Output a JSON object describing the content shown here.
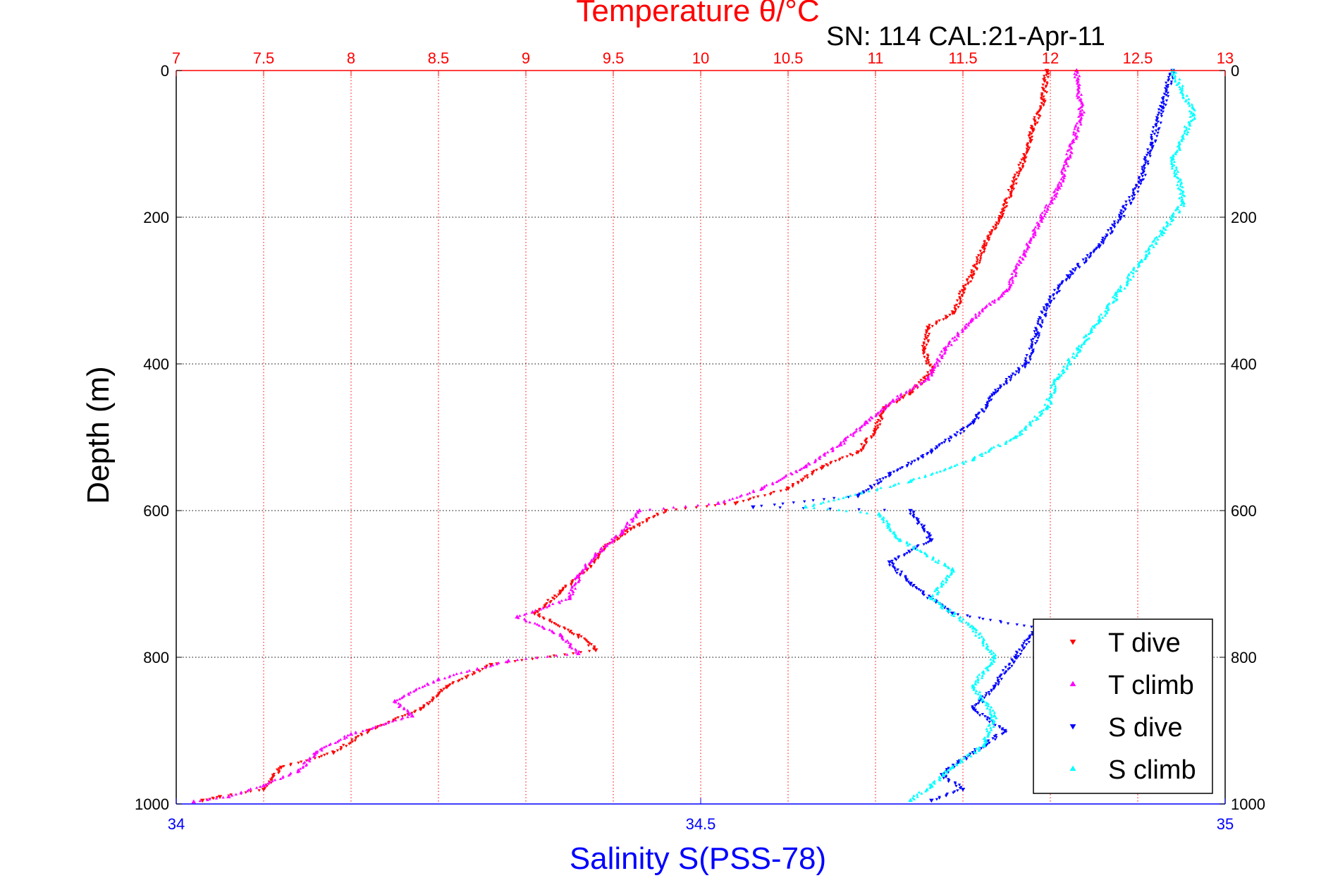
{
  "chart_data": {
    "type": "scatter",
    "title": "Temperature θ/°C",
    "subtitle": "SN: 114  CAL:21-Apr-11",
    "ylabel": "Depth (m)",
    "xlabel_top": "Temperature θ/°C",
    "xlabel_bottom": "Salinity S(PSS-78)",
    "ylim": [
      0,
      1000
    ],
    "y_reversed": true,
    "temperature_axis": {
      "range": [
        7,
        13
      ],
      "ticks": [
        "7",
        "7.5",
        "8",
        "8.5",
        "9",
        "9.5",
        "10",
        "10.5",
        "11",
        "11.5",
        "12",
        "12.5",
        "13"
      ]
    },
    "salinity_axis": {
      "range": [
        34,
        35
      ],
      "ticks": [
        "34",
        "34.5",
        "35"
      ]
    },
    "depth_ticks": [
      "0",
      "200",
      "400",
      "600",
      "800",
      "1000"
    ],
    "grid": true,
    "legend_position": "bottom-right",
    "colors": {
      "temperature_axis": "#ff0000",
      "salinity_axis": "#0000ff",
      "grid": "#000000",
      "frame": "#000000"
    },
    "series": [
      {
        "name": "T dive",
        "axis": "temperature",
        "color": "#ff0000",
        "marker": "triangle-down",
        "points": [
          [
            11.98,
            0
          ],
          [
            11.96,
            40
          ],
          [
            11.9,
            80
          ],
          [
            11.85,
            120
          ],
          [
            11.78,
            160
          ],
          [
            11.72,
            200
          ],
          [
            11.62,
            240
          ],
          [
            11.55,
            280
          ],
          [
            11.5,
            300
          ],
          [
            11.45,
            330
          ],
          [
            11.3,
            350
          ],
          [
            11.28,
            380
          ],
          [
            11.32,
            410
          ],
          [
            11.2,
            440
          ],
          [
            11.05,
            460
          ],
          [
            11.0,
            490
          ],
          [
            10.9,
            520
          ],
          [
            10.7,
            540
          ],
          [
            10.5,
            570
          ],
          [
            10.2,
            590
          ],
          [
            9.8,
            600
          ],
          [
            9.6,
            625
          ],
          [
            9.45,
            650
          ],
          [
            9.35,
            680
          ],
          [
            9.2,
            710
          ],
          [
            9.05,
            740
          ],
          [
            9.3,
            770
          ],
          [
            9.4,
            790
          ],
          [
            8.8,
            810
          ],
          [
            8.55,
            840
          ],
          [
            8.4,
            870
          ],
          [
            8.1,
            900
          ],
          [
            7.9,
            930
          ],
          [
            7.6,
            950
          ],
          [
            7.5,
            980
          ],
          [
            7.25,
            990
          ],
          [
            7.15,
            995
          ]
        ]
      },
      {
        "name": "T climb",
        "axis": "temperature",
        "color": "#ff00ff",
        "marker": "triangle-up",
        "points": [
          [
            12.15,
            0
          ],
          [
            12.18,
            60
          ],
          [
            12.1,
            120
          ],
          [
            12.05,
            160
          ],
          [
            11.95,
            200
          ],
          [
            11.85,
            250
          ],
          [
            11.75,
            300
          ],
          [
            11.55,
            340
          ],
          [
            11.4,
            380
          ],
          [
            11.3,
            420
          ],
          [
            11.1,
            450
          ],
          [
            10.95,
            480
          ],
          [
            10.8,
            510
          ],
          [
            10.6,
            540
          ],
          [
            10.35,
            570
          ],
          [
            10.1,
            590
          ],
          [
            9.65,
            600
          ],
          [
            9.55,
            630
          ],
          [
            9.4,
            660
          ],
          [
            9.3,
            690
          ],
          [
            9.25,
            720
          ],
          [
            8.95,
            745
          ],
          [
            9.2,
            770
          ],
          [
            9.3,
            795
          ],
          [
            8.9,
            805
          ],
          [
            8.5,
            830
          ],
          [
            8.25,
            860
          ],
          [
            8.35,
            880
          ],
          [
            8.0,
            905
          ],
          [
            7.8,
            930
          ],
          [
            7.7,
            955
          ],
          [
            7.5,
            975
          ],
          [
            7.3,
            990
          ],
          [
            7.1,
            997
          ]
        ]
      },
      {
        "name": "S dive",
        "axis": "salinity",
        "color": "#0000ff",
        "marker": "triangle-down",
        "points": [
          [
            34.95,
            0
          ],
          [
            34.94,
            50
          ],
          [
            34.93,
            100
          ],
          [
            34.92,
            150
          ],
          [
            34.9,
            200
          ],
          [
            34.88,
            240
          ],
          [
            34.85,
            280
          ],
          [
            34.83,
            320
          ],
          [
            34.82,
            360
          ],
          [
            34.81,
            400
          ],
          [
            34.78,
            440
          ],
          [
            34.76,
            480
          ],
          [
            34.72,
            520
          ],
          [
            34.68,
            550
          ],
          [
            34.65,
            580
          ],
          [
            34.55,
            595
          ],
          [
            34.7,
            600
          ],
          [
            34.72,
            640
          ],
          [
            34.68,
            670
          ],
          [
            34.7,
            700
          ],
          [
            34.74,
            740
          ],
          [
            34.82,
            760
          ],
          [
            34.8,
            800
          ],
          [
            34.78,
            840
          ],
          [
            34.76,
            870
          ],
          [
            34.79,
            900
          ],
          [
            34.76,
            930
          ],
          [
            34.73,
            960
          ],
          [
            34.75,
            980
          ],
          [
            34.72,
            995
          ]
        ]
      },
      {
        "name": "S climb",
        "axis": "salinity",
        "color": "#00ffff",
        "marker": "triangle-up",
        "points": [
          [
            34.95,
            0
          ],
          [
            34.97,
            60
          ],
          [
            34.95,
            120
          ],
          [
            34.96,
            180
          ],
          [
            34.94,
            220
          ],
          [
            34.92,
            260
          ],
          [
            34.9,
            300
          ],
          [
            34.88,
            340
          ],
          [
            34.86,
            380
          ],
          [
            34.84,
            420
          ],
          [
            34.83,
            460
          ],
          [
            34.8,
            500
          ],
          [
            34.76,
            530
          ],
          [
            34.7,
            560
          ],
          [
            34.6,
            595
          ],
          [
            34.67,
            605
          ],
          [
            34.69,
            640
          ],
          [
            34.74,
            680
          ],
          [
            34.72,
            720
          ],
          [
            34.76,
            760
          ],
          [
            34.78,
            800
          ],
          [
            34.76,
            840
          ],
          [
            34.78,
            880
          ],
          [
            34.77,
            920
          ],
          [
            34.74,
            950
          ],
          [
            34.72,
            975
          ],
          [
            34.7,
            995
          ]
        ]
      }
    ]
  }
}
